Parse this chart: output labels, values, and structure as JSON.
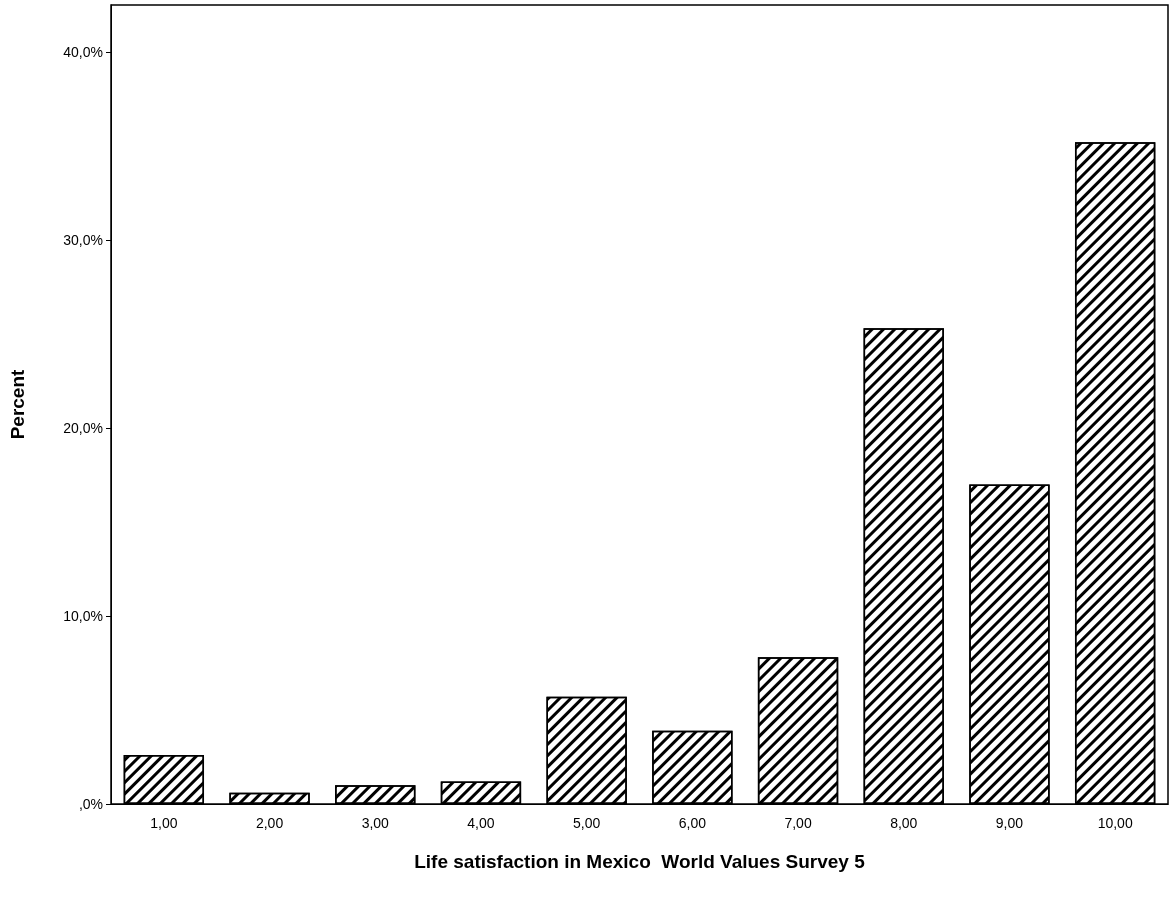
{
  "chart_data": {
    "type": "bar",
    "xlabel": "Life satisfaction in Mexico  World Values Survey 5",
    "ylabel": "Percent",
    "categories": [
      "1,00",
      "2,00",
      "3,00",
      "4,00",
      "5,00",
      "6,00",
      "7,00",
      "8,00",
      "9,00",
      "10,00"
    ],
    "values": [
      2.6,
      0.6,
      1.0,
      1.2,
      5.7,
      3.9,
      7.8,
      25.3,
      17.0,
      35.2
    ],
    "color": "#ffffff",
    "ylim": [
      0,
      42.5
    ],
    "yticks": [
      {
        "value": 0,
        "label": ",0%"
      },
      {
        "value": 10,
        "label": "10,0%"
      },
      {
        "value": 20,
        "label": "20,0%"
      },
      {
        "value": 30,
        "label": "30,0%"
      },
      {
        "value": 40,
        "label": "40,0%"
      }
    ],
    "grid": false
  }
}
